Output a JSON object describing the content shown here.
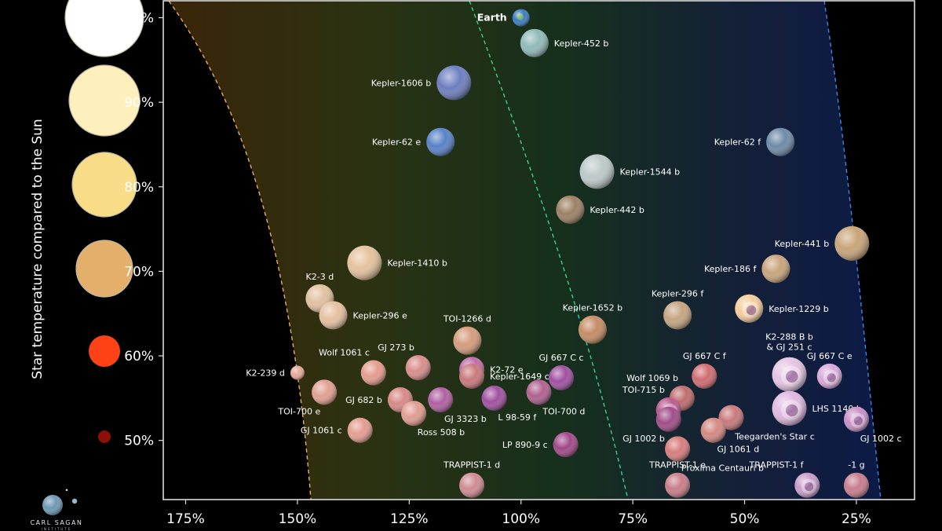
{
  "chart_data": {
    "type": "scatter",
    "title": "",
    "xlabel": "",
    "ylabel": "Star temperature compared to the Sun",
    "x_ticks": [
      "175%",
      "150%",
      "125%",
      "100%",
      "75%",
      "50%",
      "25%"
    ],
    "y_ticks": [
      "50%",
      "60%",
      "70%",
      "80%",
      "90%",
      "100%"
    ],
    "xlim": [
      180,
      12
    ],
    "ylim": [
      43,
      102
    ],
    "grid": false,
    "zones": {
      "habitable_inner": "orange dashed",
      "earth_reference": "green dashed",
      "habitable_outer": "blue dashed"
    },
    "star_scale": [
      {
        "label": "100%",
        "color": "#ffffff"
      },
      {
        "label": "90%",
        "color": "#fdf0bd"
      },
      {
        "label": "80%",
        "color": "#f8dc88"
      },
      {
        "label": "70%",
        "color": "#e4ae6b"
      },
      {
        "label": "60%",
        "color": "#ff4216"
      },
      {
        "label": "50%",
        "color": "#8c1008"
      }
    ],
    "planets": [
      {
        "name": "Earth",
        "x": 100,
        "y": 100,
        "color": "#3b7bc4",
        "kind": "earth",
        "labelSide": "left",
        "bold": true
      },
      {
        "name": "Kepler-452 b",
        "x": 97,
        "y": 97,
        "color": "#8fb9b8",
        "kind": "rocky",
        "labelSide": "right"
      },
      {
        "name": "Kepler-1606 b",
        "x": 115,
        "y": 92.3,
        "color": "#6c7ec0",
        "kind": "rocky",
        "labelSide": "left"
      },
      {
        "name": "Kepler-62 e",
        "x": 118,
        "y": 85.3,
        "color": "#5782c8",
        "kind": "rocky",
        "labelSide": "left"
      },
      {
        "name": "Kepler-62 f",
        "x": 42,
        "y": 85.3,
        "color": "#6e8aa8",
        "kind": "rocky",
        "labelSide": "left"
      },
      {
        "name": "Kepler-1544 b",
        "x": 83,
        "y": 81.8,
        "color": "#bcc8c8",
        "kind": "rocky",
        "labelSide": "right"
      },
      {
        "name": "Kepler-442 b",
        "x": 89,
        "y": 77.3,
        "color": "#9c8064",
        "kind": "rocky",
        "labelSide": "right"
      },
      {
        "name": "Kepler-441 b",
        "x": 26,
        "y": 73.3,
        "color": "#c8a478",
        "kind": "rocky",
        "labelSide": "left"
      },
      {
        "name": "Kepler-1410 b",
        "x": 135,
        "y": 71,
        "color": "#e4c29c",
        "kind": "rocky",
        "labelSide": "right"
      },
      {
        "name": "Kepler-186 f",
        "x": 43,
        "y": 70.3,
        "color": "#c8a47c",
        "kind": "rocky",
        "labelSide": "left"
      },
      {
        "name": "K2-3 d",
        "x": 145,
        "y": 66.8,
        "color": "#e0c0a0",
        "kind": "rocky",
        "labelSide": "above"
      },
      {
        "name": "Kepler-296 e",
        "x": 142,
        "y": 64.8,
        "color": "#e4c0a0",
        "kind": "rocky",
        "labelSide": "right"
      },
      {
        "name": "Kepler-296 f",
        "x": 65,
        "y": 64.8,
        "color": "#c4a480",
        "kind": "rocky",
        "labelSide": "above"
      },
      {
        "name": "Kepler-1229 b",
        "x": 49,
        "y": 65.6,
        "color": "#f4cc9c",
        "kind": "ring",
        "labelSide": "right"
      },
      {
        "name": "Kepler-1652 b",
        "x": 84,
        "y": 63.1,
        "color": "#c48c64",
        "kind": "rocky",
        "labelSide": "above"
      },
      {
        "name": "TOI-1266 d",
        "x": 112,
        "y": 61.8,
        "color": "#d49c7c",
        "kind": "rocky",
        "labelSide": "above"
      },
      {
        "name": "K2-288 B b\n& GJ 251 c",
        "x": 40,
        "y": 57.8,
        "color": "#e4c4e4",
        "kind": "ring",
        "labelSide": "above2"
      },
      {
        "name": "GJ 667 C e",
        "x": 31,
        "y": 57.6,
        "color": "#d8a8d8",
        "kind": "ring",
        "labelSide": "above"
      },
      {
        "name": "GJ 667 C f",
        "x": 59,
        "y": 57.6,
        "color": "#d06c70",
        "kind": "rocky",
        "labelSide": "above"
      },
      {
        "name": "GJ 667 C c",
        "x": 91,
        "y": 57.4,
        "color": "#a050a0",
        "kind": "rocky",
        "labelSide": "above"
      },
      {
        "name": "Wolf 1061 c",
        "x": 133,
        "y": 58,
        "color": "#e49c8c",
        "kind": "rocky",
        "labelSide": "aboveleft"
      },
      {
        "name": "K2-239 d",
        "x": 150,
        "y": 58,
        "color": "#e4a898",
        "kind": "rocky",
        "labelSide": "left"
      },
      {
        "name": "GJ 273 b",
        "x": 123,
        "y": 58.6,
        "color": "#d88c8c",
        "kind": "rocky",
        "labelSide": "aboveleft"
      },
      {
        "name": "K2-72 e",
        "x": 111,
        "y": 58.4,
        "color": "#c06ca8",
        "kind": "rocky",
        "labelSide": "right"
      },
      {
        "name": "Kepler-1649 c",
        "x": 111,
        "y": 57.6,
        "color": "#c8787c",
        "kind": "rocky",
        "labelSide": "right"
      },
      {
        "name": "TOI-700 e",
        "x": 144,
        "y": 55.7,
        "color": "#e0a090",
        "kind": "rocky",
        "labelSide": "belowleft"
      },
      {
        "name": "GJ 682 b",
        "x": 127,
        "y": 54.8,
        "color": "#d88888",
        "kind": "rocky",
        "labelSide": "left"
      },
      {
        "name": "GJ 3323 b",
        "x": 118,
        "y": 54.8,
        "color": "#b060a0",
        "kind": "rocky",
        "labelSide": "belowright"
      },
      {
        "name": "L 98-59 f",
        "x": 106,
        "y": 55,
        "color": "#a050a0",
        "kind": "rocky",
        "labelSide": "belowright"
      },
      {
        "name": "TOI-700 d",
        "x": 96,
        "y": 55.7,
        "color": "#b06090",
        "kind": "rocky",
        "labelSide": "belowright"
      },
      {
        "name": "Ross 508 b",
        "x": 124,
        "y": 53.2,
        "color": "#e09c90",
        "kind": "rocky",
        "labelSide": "belowright"
      },
      {
        "name": "GJ 1061 c",
        "x": 136,
        "y": 51.2,
        "color": "#e49c90",
        "kind": "rocky",
        "labelSide": "left"
      },
      {
        "name": "Wolf 1069 b",
        "x": 64,
        "y": 55,
        "color": "#c06c6c",
        "kind": "rocky",
        "labelSide": "aboveleft"
      },
      {
        "name": "TOI-715 b",
        "x": 67,
        "y": 53.6,
        "color": "#b85a8c",
        "kind": "ring",
        "labelSide": "aboveleft"
      },
      {
        "name": "LHS 1140 b",
        "x": 40,
        "y": 53.8,
        "color": "#e0b8e0",
        "kind": "ring",
        "labelSide": "right"
      },
      {
        "name": "GJ 1002 b",
        "x": 67,
        "y": 52.5,
        "color": "#a04c88",
        "kind": "rocky",
        "labelSide": "belowleft"
      },
      {
        "name": "Teegarden's Star c",
        "x": 53,
        "y": 52.7,
        "color": "#c8787c",
        "kind": "rocky",
        "labelSide": "belowright"
      },
      {
        "name": "GJ 1061 d",
        "x": 57,
        "y": 51.2,
        "color": "#d48880",
        "kind": "rocky",
        "labelSide": "belowright"
      },
      {
        "name": "GJ 1002 c",
        "x": 25,
        "y": 52.5,
        "color": "#c890c8",
        "kind": "ring",
        "labelSide": "belowright"
      },
      {
        "name": "LP 890-9 c",
        "x": 90,
        "y": 49.5,
        "color": "#a04888",
        "kind": "rocky",
        "labelSide": "left"
      },
      {
        "name": "Proxima Centauri b",
        "x": 65,
        "y": 49,
        "color": "#d87c7c",
        "kind": "rocky",
        "labelSide": "belowright"
      },
      {
        "name": "TRAPPIST-1 d",
        "x": 111,
        "y": 44.7,
        "color": "#d08a90",
        "kind": "rocky",
        "labelSide": "above"
      },
      {
        "name": "TRAPPIST-1 e",
        "x": 65,
        "y": 44.7,
        "color": "#c87c88",
        "kind": "rocky",
        "labelSide": "above"
      },
      {
        "name": "TRAPPIST-1 f",
        "x": 36,
        "y": 44.7,
        "color": "#c89cc8",
        "kind": "ring",
        "labelSide": "aboveleft"
      },
      {
        "name": "-1 g",
        "x": 25,
        "y": 44.7,
        "color": "#c87c8c",
        "kind": "rocky",
        "labelSide": "above"
      }
    ]
  },
  "branding": {
    "logo_text": "CARL SAGAN",
    "logo_sub": "INSTITUTE"
  }
}
